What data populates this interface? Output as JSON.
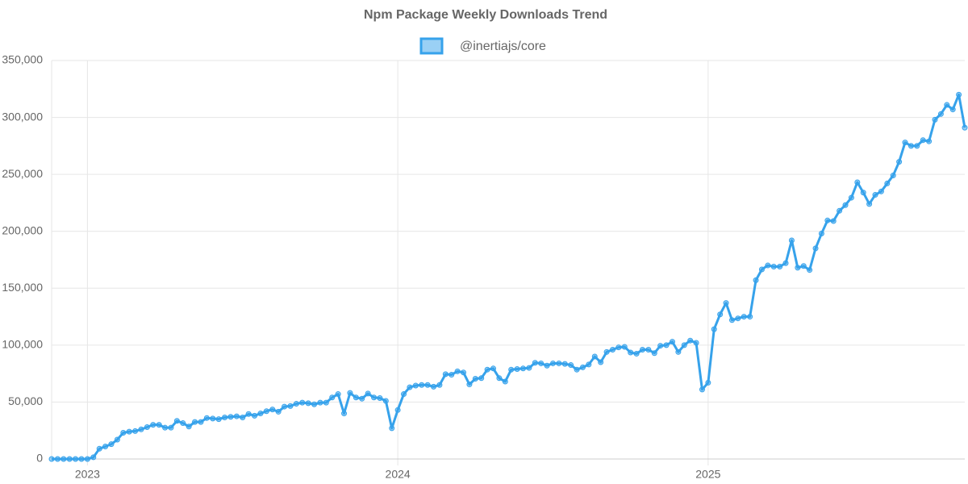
{
  "chart_data": {
    "type": "line",
    "title": "Npm Package Weekly Downloads Trend",
    "categories": [
      null,
      null,
      null,
      null,
      null,
      null,
      "2023",
      null,
      null,
      null,
      null,
      null,
      null,
      null,
      null,
      null,
      null,
      null,
      null,
      null,
      null,
      null,
      null,
      null,
      null,
      null,
      null,
      null,
      null,
      null,
      null,
      null,
      null,
      null,
      null,
      null,
      null,
      null,
      null,
      null,
      null,
      null,
      null,
      null,
      null,
      null,
      null,
      null,
      null,
      null,
      null,
      null,
      null,
      null,
      null,
      null,
      null,
      null,
      "2024",
      null,
      null,
      null,
      null,
      null,
      null,
      null,
      null,
      null,
      null,
      null,
      null,
      null,
      null,
      null,
      null,
      null,
      null,
      null,
      null,
      null,
      null,
      null,
      null,
      null,
      null,
      null,
      null,
      null,
      null,
      null,
      null,
      null,
      null,
      null,
      null,
      null,
      null,
      null,
      null,
      null,
      null,
      null,
      null,
      null,
      null,
      null,
      null,
      null,
      null,
      null,
      "2025",
      null,
      null,
      null,
      null,
      null,
      null,
      null,
      null,
      null,
      null,
      null,
      null,
      null,
      null,
      null,
      null,
      null,
      null,
      null,
      null,
      null,
      null,
      null,
      null,
      null,
      null,
      null,
      null,
      null,
      null,
      null,
      null,
      null,
      null,
      null,
      null,
      null,
      null,
      null,
      null,
      null,
      null,
      null
    ],
    "series": [
      {
        "name": "@inertiajs/core",
        "color": "#36a2eb",
        "values": [
          0,
          0,
          0,
          0,
          0,
          0,
          0,
          1500,
          9000,
          11000,
          13000,
          17000,
          23000,
          24000,
          24500,
          26000,
          28000,
          30000,
          30000,
          27500,
          27500,
          33500,
          31500,
          28500,
          32500,
          32500,
          36000,
          35500,
          35000,
          36500,
          37000,
          37500,
          36500,
          39500,
          38000,
          40000,
          42000,
          43500,
          41500,
          46000,
          46500,
          48500,
          49500,
          49000,
          48000,
          49500,
          49500,
          54000,
          57000,
          40000,
          58000,
          54000,
          53000,
          57500,
          54000,
          53500,
          51000,
          27000,
          43000,
          57000,
          63000,
          64500,
          65000,
          65000,
          63500,
          65000,
          74500,
          74000,
          77000,
          76000,
          65500,
          70500,
          71000,
          78500,
          79500,
          71000,
          68000,
          78500,
          79000,
          79500,
          80000,
          84500,
          84000,
          82000,
          84000,
          84000,
          83500,
          82500,
          78500,
          80500,
          83000,
          90000,
          85000,
          94000,
          96000,
          98000,
          98500,
          93500,
          92500,
          96000,
          96000,
          93000,
          99500,
          100000,
          103000,
          94000,
          100000,
          104000,
          102000,
          61000,
          67000,
          114000,
          127000,
          137000,
          122000,
          123500,
          125000,
          125000,
          157000,
          166500,
          170000,
          169000,
          169000,
          172000,
          192000,
          168000,
          169500,
          166000,
          185000,
          198000,
          209500,
          209000,
          218000,
          223000,
          229500,
          243000,
          234000,
          224000,
          232000,
          235000,
          242000,
          249000,
          261000,
          278000,
          275000,
          275000,
          280000,
          279000,
          298000,
          303000,
          311000,
          307000,
          320000,
          291000
        ]
      }
    ],
    "ylim": [
      0,
      350000
    ],
    "yticks": [
      0,
      {
        "value": 50000,
        "label": "50,000"
      },
      {
        "value": 100000,
        "label": "100,000"
      },
      {
        "value": 150000,
        "label": "150,000"
      },
      {
        "value": 200000,
        "label": "200,000"
      },
      {
        "value": 250000,
        "label": "250,000"
      },
      {
        "value": 300000,
        "label": "300,000"
      },
      {
        "value": 350000,
        "label": "350,000"
      }
    ],
    "grid": true,
    "legend": "top"
  }
}
